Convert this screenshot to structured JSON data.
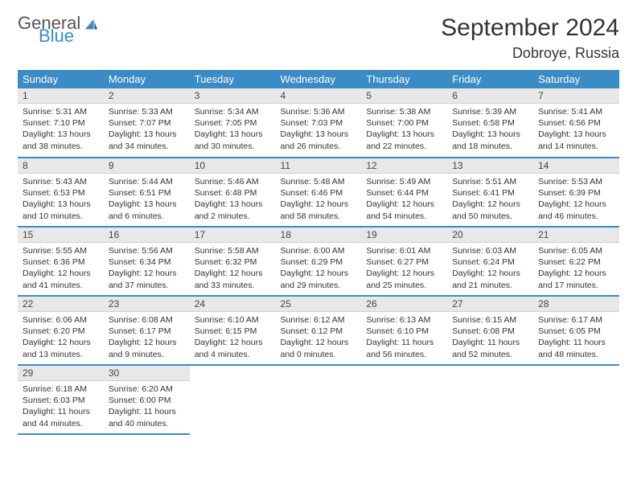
{
  "brand": {
    "word1": "General",
    "word2": "Blue",
    "logo_color": "#3b8bc4"
  },
  "title": "September 2024",
  "location": "Dobroye, Russia",
  "header_bg": "#3b8bc4",
  "header_fg": "#ffffff",
  "daynum_bg": "#e8e8e8",
  "row_border": "#3b8bc4",
  "weekdays": [
    "Sunday",
    "Monday",
    "Tuesday",
    "Wednesday",
    "Thursday",
    "Friday",
    "Saturday"
  ],
  "weeks": [
    [
      {
        "n": "1",
        "sr": "Sunrise: 5:31 AM",
        "ss": "Sunset: 7:10 PM",
        "d1": "Daylight: 13 hours",
        "d2": "and 38 minutes."
      },
      {
        "n": "2",
        "sr": "Sunrise: 5:33 AM",
        "ss": "Sunset: 7:07 PM",
        "d1": "Daylight: 13 hours",
        "d2": "and 34 minutes."
      },
      {
        "n": "3",
        "sr": "Sunrise: 5:34 AM",
        "ss": "Sunset: 7:05 PM",
        "d1": "Daylight: 13 hours",
        "d2": "and 30 minutes."
      },
      {
        "n": "4",
        "sr": "Sunrise: 5:36 AM",
        "ss": "Sunset: 7:03 PM",
        "d1": "Daylight: 13 hours",
        "d2": "and 26 minutes."
      },
      {
        "n": "5",
        "sr": "Sunrise: 5:38 AM",
        "ss": "Sunset: 7:00 PM",
        "d1": "Daylight: 13 hours",
        "d2": "and 22 minutes."
      },
      {
        "n": "6",
        "sr": "Sunrise: 5:39 AM",
        "ss": "Sunset: 6:58 PM",
        "d1": "Daylight: 13 hours",
        "d2": "and 18 minutes."
      },
      {
        "n": "7",
        "sr": "Sunrise: 5:41 AM",
        "ss": "Sunset: 6:56 PM",
        "d1": "Daylight: 13 hours",
        "d2": "and 14 minutes."
      }
    ],
    [
      {
        "n": "8",
        "sr": "Sunrise: 5:43 AM",
        "ss": "Sunset: 6:53 PM",
        "d1": "Daylight: 13 hours",
        "d2": "and 10 minutes."
      },
      {
        "n": "9",
        "sr": "Sunrise: 5:44 AM",
        "ss": "Sunset: 6:51 PM",
        "d1": "Daylight: 13 hours",
        "d2": "and 6 minutes."
      },
      {
        "n": "10",
        "sr": "Sunrise: 5:46 AM",
        "ss": "Sunset: 6:48 PM",
        "d1": "Daylight: 13 hours",
        "d2": "and 2 minutes."
      },
      {
        "n": "11",
        "sr": "Sunrise: 5:48 AM",
        "ss": "Sunset: 6:46 PM",
        "d1": "Daylight: 12 hours",
        "d2": "and 58 minutes."
      },
      {
        "n": "12",
        "sr": "Sunrise: 5:49 AM",
        "ss": "Sunset: 6:44 PM",
        "d1": "Daylight: 12 hours",
        "d2": "and 54 minutes."
      },
      {
        "n": "13",
        "sr": "Sunrise: 5:51 AM",
        "ss": "Sunset: 6:41 PM",
        "d1": "Daylight: 12 hours",
        "d2": "and 50 minutes."
      },
      {
        "n": "14",
        "sr": "Sunrise: 5:53 AM",
        "ss": "Sunset: 6:39 PM",
        "d1": "Daylight: 12 hours",
        "d2": "and 46 minutes."
      }
    ],
    [
      {
        "n": "15",
        "sr": "Sunrise: 5:55 AM",
        "ss": "Sunset: 6:36 PM",
        "d1": "Daylight: 12 hours",
        "d2": "and 41 minutes."
      },
      {
        "n": "16",
        "sr": "Sunrise: 5:56 AM",
        "ss": "Sunset: 6:34 PM",
        "d1": "Daylight: 12 hours",
        "d2": "and 37 minutes."
      },
      {
        "n": "17",
        "sr": "Sunrise: 5:58 AM",
        "ss": "Sunset: 6:32 PM",
        "d1": "Daylight: 12 hours",
        "d2": "and 33 minutes."
      },
      {
        "n": "18",
        "sr": "Sunrise: 6:00 AM",
        "ss": "Sunset: 6:29 PM",
        "d1": "Daylight: 12 hours",
        "d2": "and 29 minutes."
      },
      {
        "n": "19",
        "sr": "Sunrise: 6:01 AM",
        "ss": "Sunset: 6:27 PM",
        "d1": "Daylight: 12 hours",
        "d2": "and 25 minutes."
      },
      {
        "n": "20",
        "sr": "Sunrise: 6:03 AM",
        "ss": "Sunset: 6:24 PM",
        "d1": "Daylight: 12 hours",
        "d2": "and 21 minutes."
      },
      {
        "n": "21",
        "sr": "Sunrise: 6:05 AM",
        "ss": "Sunset: 6:22 PM",
        "d1": "Daylight: 12 hours",
        "d2": "and 17 minutes."
      }
    ],
    [
      {
        "n": "22",
        "sr": "Sunrise: 6:06 AM",
        "ss": "Sunset: 6:20 PM",
        "d1": "Daylight: 12 hours",
        "d2": "and 13 minutes."
      },
      {
        "n": "23",
        "sr": "Sunrise: 6:08 AM",
        "ss": "Sunset: 6:17 PM",
        "d1": "Daylight: 12 hours",
        "d2": "and 9 minutes."
      },
      {
        "n": "24",
        "sr": "Sunrise: 6:10 AM",
        "ss": "Sunset: 6:15 PM",
        "d1": "Daylight: 12 hours",
        "d2": "and 4 minutes."
      },
      {
        "n": "25",
        "sr": "Sunrise: 6:12 AM",
        "ss": "Sunset: 6:12 PM",
        "d1": "Daylight: 12 hours",
        "d2": "and 0 minutes."
      },
      {
        "n": "26",
        "sr": "Sunrise: 6:13 AM",
        "ss": "Sunset: 6:10 PM",
        "d1": "Daylight: 11 hours",
        "d2": "and 56 minutes."
      },
      {
        "n": "27",
        "sr": "Sunrise: 6:15 AM",
        "ss": "Sunset: 6:08 PM",
        "d1": "Daylight: 11 hours",
        "d2": "and 52 minutes."
      },
      {
        "n": "28",
        "sr": "Sunrise: 6:17 AM",
        "ss": "Sunset: 6:05 PM",
        "d1": "Daylight: 11 hours",
        "d2": "and 48 minutes."
      }
    ],
    [
      {
        "n": "29",
        "sr": "Sunrise: 6:18 AM",
        "ss": "Sunset: 6:03 PM",
        "d1": "Daylight: 11 hours",
        "d2": "and 44 minutes."
      },
      {
        "n": "30",
        "sr": "Sunrise: 6:20 AM",
        "ss": "Sunset: 6:00 PM",
        "d1": "Daylight: 11 hours",
        "d2": "and 40 minutes."
      },
      null,
      null,
      null,
      null,
      null
    ]
  ]
}
